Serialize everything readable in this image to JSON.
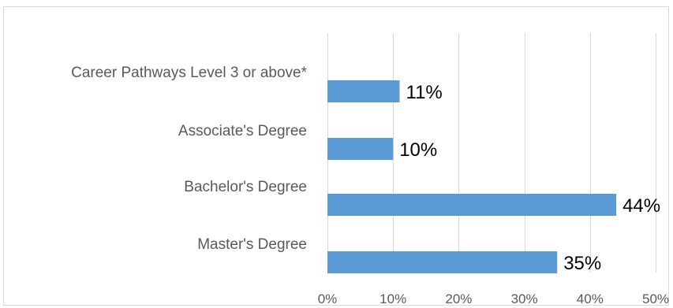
{
  "chart_data": {
    "type": "bar",
    "orientation": "horizontal",
    "categories": [
      "Career Pathways Level 3 or above*",
      "Associate's Degree",
      "Bachelor's Degree",
      "Master's Degree"
    ],
    "values": [
      11,
      10,
      44,
      35
    ],
    "data_labels": [
      "11%",
      "10%",
      "44%",
      "35%"
    ],
    "xlim": [
      0,
      50
    ],
    "x_ticks": [
      0,
      10,
      20,
      30,
      40,
      50
    ],
    "x_tick_labels": [
      "0%",
      "10%",
      "20%",
      "30%",
      "40%",
      "50%"
    ],
    "title": "",
    "xlabel": "",
    "ylabel": "",
    "grid": "vertical",
    "legend": "none",
    "bar_color": "#5b9bd5",
    "grid_color": "#d9d9d9"
  }
}
